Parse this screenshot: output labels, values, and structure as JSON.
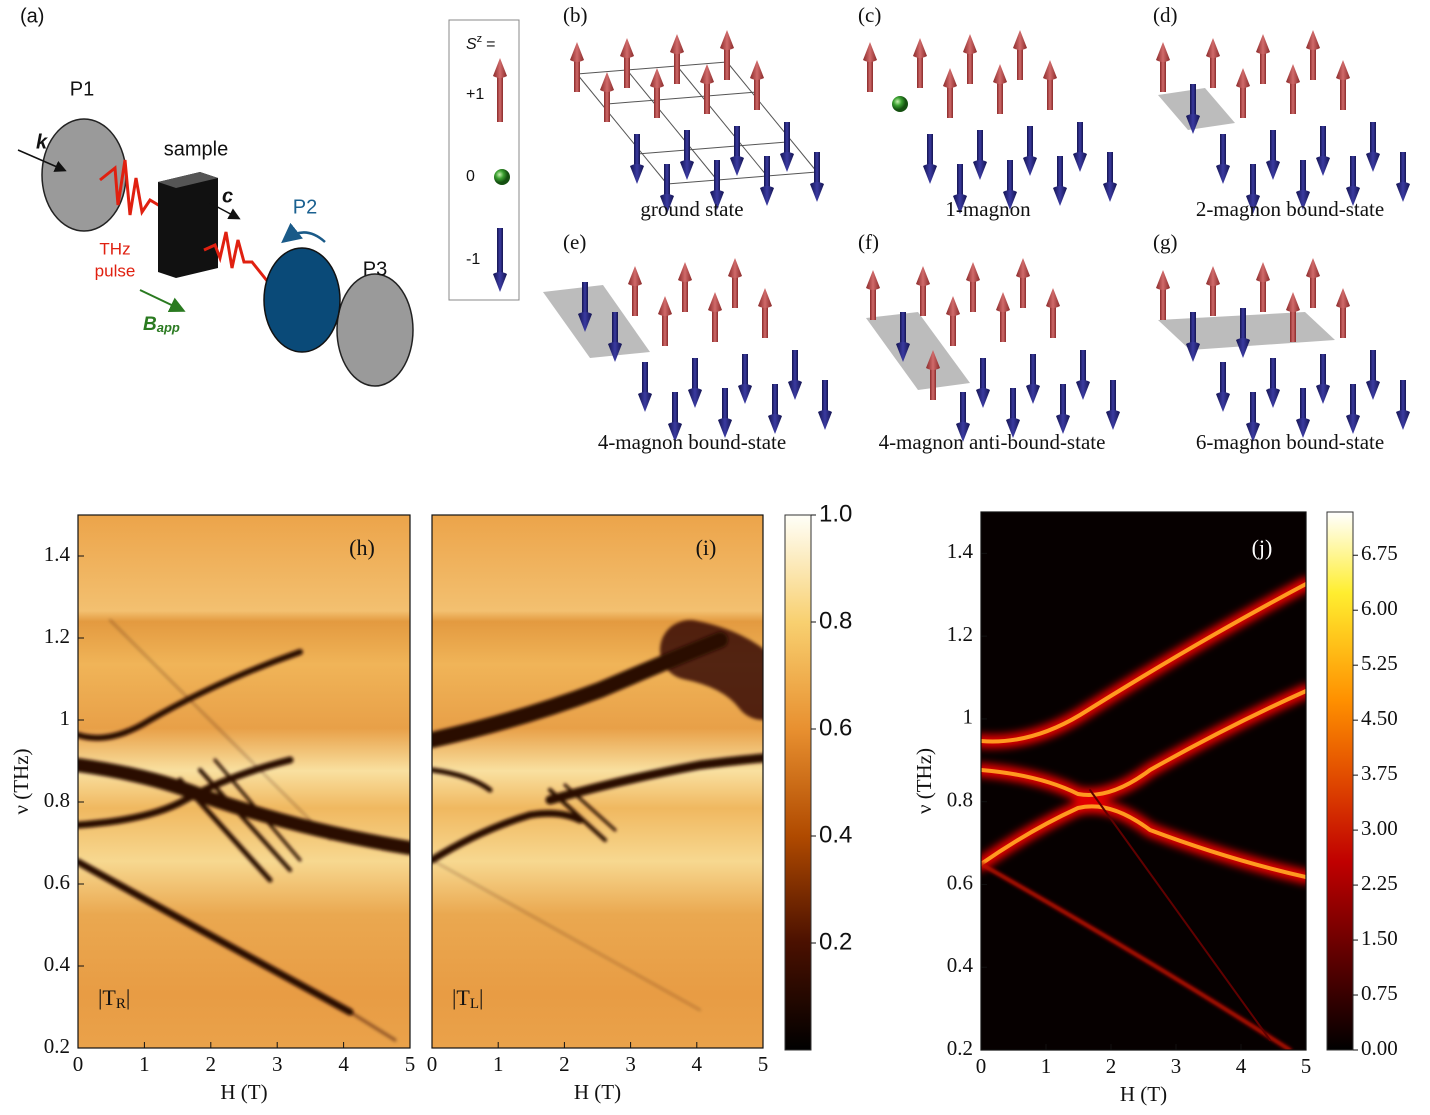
{
  "panel_a": {
    "label": "(a)",
    "p1": "P1",
    "k": "k",
    "sample": "sample",
    "c": "c",
    "p2": "P2",
    "p3": "P3",
    "thz": "THz",
    "pulse": "pulse",
    "b": "B",
    "b_sub": "app"
  },
  "legend": {
    "symbol": "S",
    "superscript": "z",
    "equals": "=",
    "levels": [
      "+1",
      "0",
      "-1"
    ]
  },
  "states": [
    {
      "label": "(b)",
      "caption": "ground state"
    },
    {
      "label": "(c)",
      "caption": "1-magnon"
    },
    {
      "label": "(d)",
      "caption": "2-magnon bound-state"
    },
    {
      "label": "(e)",
      "caption": "4-magnon bound-state"
    },
    {
      "label": "(f)",
      "caption": "4-magnon anti-bound-state"
    },
    {
      "label": "(g)",
      "caption": "6-magnon bound-state"
    }
  ],
  "maps": [
    {
      "label": "(h)",
      "annotation": {
        "prefix": "|T",
        "subscript": "R",
        "suffix": "|"
      },
      "x_label": "H (T)",
      "y_label": "ν (THz)",
      "xlim": [
        0,
        5
      ],
      "ylim": [
        0.2,
        1.5
      ],
      "xticks": [
        0,
        1,
        2,
        3,
        4,
        5
      ],
      "yticks": [
        0.2,
        0.4,
        0.6,
        0.8,
        1,
        1.2,
        1.4
      ]
    },
    {
      "label": "(i)",
      "annotation": {
        "prefix": "|T",
        "subscript": "L",
        "suffix": "|"
      },
      "x_label": "H (T)",
      "xlim": [
        0,
        5
      ],
      "ylim": [
        0.2,
        1.5
      ],
      "xticks": [
        0,
        1,
        2,
        3,
        4,
        5
      ]
    },
    {
      "label": "(j)",
      "x_label": "H (T)",
      "y_label": "ν (THz)",
      "xlim": [
        0,
        5
      ],
      "ylim": [
        0.2,
        1.5
      ],
      "xticks": [
        0,
        1,
        2,
        3,
        4,
        5
      ],
      "yticks": [
        0.2,
        0.4,
        0.6,
        0.8,
        1,
        1.2,
        1.4
      ]
    }
  ],
  "colorbar_hi": {
    "lim": [
      0,
      1
    ],
    "ticks": [
      0.2,
      0.4,
      0.6,
      0.8,
      {
        "value": 1,
        "label": "1.0"
      }
    ]
  },
  "colorbar_j": {
    "lim": [
      0,
      7.34
    ],
    "ticks": [
      {
        "value": 0,
        "label": "0.00"
      },
      0.75,
      {
        "value": 1.5,
        "label": "1.50"
      },
      2.25,
      {
        "value": 3,
        "label": "3.00"
      },
      3.75,
      {
        "value": 4.5,
        "label": "4.50"
      },
      5.25,
      {
        "value": 6,
        "label": "6.00"
      },
      6.75
    ]
  }
}
